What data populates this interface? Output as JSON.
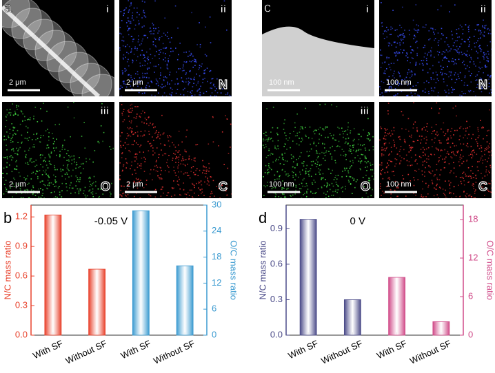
{
  "image_panels": [
    {
      "label": "a",
      "images": [
        {
          "roman": "i",
          "scale": "2 μm",
          "color": "#d0d0d0"
        },
        {
          "roman": "ii",
          "scale": "2 μm",
          "element": "N",
          "color": "#3a50ff"
        },
        {
          "roman": "iii",
          "scale": "2 μm",
          "element": "O",
          "color": "#40d040"
        },
        {
          "scale": "2 μm",
          "element": "C",
          "color": "#e03030"
        }
      ]
    },
    {
      "label": "c",
      "images": [
        {
          "roman": "i",
          "scale": "100 nm",
          "color": "#d0d0d0"
        },
        {
          "roman": "ii",
          "scale": "100 nm",
          "element": "N",
          "color": "#3a50ff"
        },
        {
          "roman": "iii",
          "scale": "100 nm",
          "element": "O",
          "color": "#40d040"
        },
        {
          "scale": "100 nm",
          "element": "C",
          "color": "#e03030"
        }
      ]
    }
  ],
  "chart_data": [
    {
      "type": "bar",
      "label": "b",
      "annotation": "-0.05 V",
      "categories": [
        "With SF",
        "Without SF",
        "With SF",
        "Without SF"
      ],
      "y_label": "N/C mass ratio",
      "y2_label": "O/C mass ratio",
      "ylim": [
        0,
        1.32
      ],
      "yticks": [
        {
          "value": 0,
          "label": "0.0"
        },
        {
          "value": 0.3,
          "label": "0.3"
        },
        {
          "value": 0.6,
          "label": "0.6"
        },
        {
          "value": 0.9,
          "label": "0.9"
        },
        {
          "value": 1.2,
          "label": "1.2"
        }
      ],
      "y2lim": [
        0,
        30
      ],
      "y2ticks": [
        0,
        6,
        12,
        18,
        24,
        30
      ],
      "series": [
        {
          "name": "N/C mass ratio",
          "color": "#e8402a",
          "values": [
            1.22,
            0.67,
            null,
            null
          ]
        },
        {
          "name": "O/C mass ratio",
          "color": "#3a9ad0",
          "axis": "y2",
          "values": [
            null,
            null,
            28.7,
            16.0
          ]
        }
      ]
    },
    {
      "type": "bar",
      "label": "d",
      "annotation": "0 V",
      "categories": [
        "With SF",
        "Without SF",
        "With SF",
        "Without SF"
      ],
      "y_label": "N/C mass ratio",
      "y2_label": "O/C mass ratio",
      "ylim": [
        0,
        1.1
      ],
      "yticks": [
        {
          "value": 0,
          "label": "0.0"
        },
        {
          "value": 0.3,
          "label": "0.3"
        },
        {
          "value": 0.6,
          "label": "0.6"
        },
        {
          "value": 0.9,
          "label": "0.9"
        }
      ],
      "y2lim": [
        0,
        20.25
      ],
      "y2ticks": [
        0,
        6,
        12,
        18
      ],
      "series": [
        {
          "name": "N/C mass ratio",
          "color": "#4a4a88",
          "values": [
            0.98,
            0.3,
            null,
            null
          ]
        },
        {
          "name": "O/C mass ratio",
          "color": "#d04a88",
          "axis": "y2",
          "values": [
            null,
            null,
            9.0,
            2.1
          ]
        }
      ]
    }
  ]
}
